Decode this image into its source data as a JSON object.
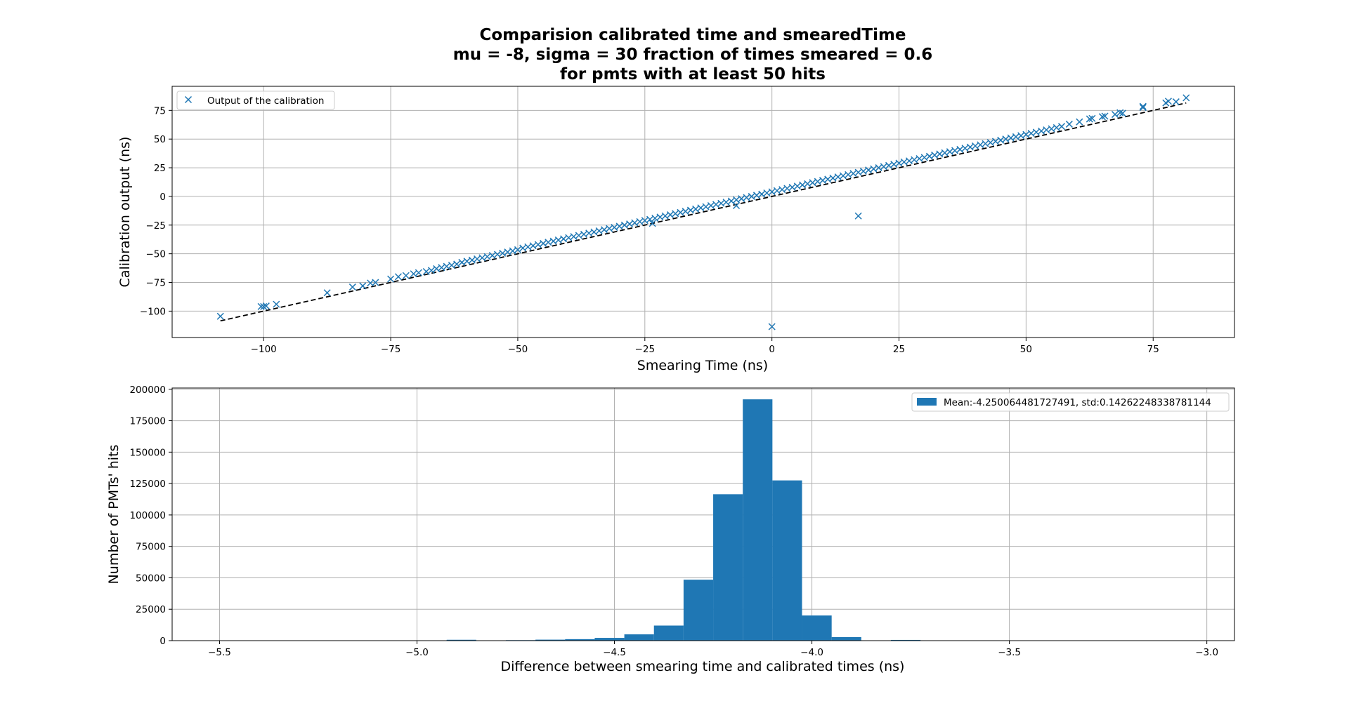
{
  "title_lines": [
    "Comparision calibrated time and smearedTime",
    "mu = -8, sigma = 30 fraction of times smeared = 0.6",
    "for pmts with at least 50 hits"
  ],
  "colors": {
    "series": "#1f77b4",
    "fit_line": "#000000"
  },
  "chart_data": [
    {
      "type": "scatter",
      "xlabel": "Smearing Time (ns)",
      "ylabel": "Calibration output (ns)",
      "xlim": [
        -118,
        91
      ],
      "ylim": [
        -123,
        96
      ],
      "xticks": [
        -100,
        -75,
        -50,
        -25,
        0,
        25,
        50,
        75
      ],
      "yticks": [
        -100,
        -75,
        -50,
        -25,
        0,
        25,
        50,
        75
      ],
      "grid": true,
      "legend_position": "top-left",
      "series": [
        {
          "name": "Output of the calibration",
          "marker": "x",
          "points": [
            [
              -108.5,
              -104.5
            ],
            [
              -100.5,
              -96
            ],
            [
              -100,
              -96
            ],
            [
              -99.5,
              -95.5
            ],
            [
              -97.5,
              -94
            ],
            [
              -87.5,
              -84
            ],
            [
              -82.5,
              -79
            ],
            [
              -80.5,
              -78
            ],
            [
              -79,
              -75.5
            ],
            [
              -78,
              -75
            ],
            [
              -75,
              -72
            ],
            [
              -73.5,
              -70
            ],
            [
              -72,
              -69
            ],
            [
              -70.5,
              -67.5
            ],
            [
              -69.5,
              -66.5
            ],
            [
              -68,
              -65.5
            ],
            [
              -67,
              -64.5
            ],
            [
              -66,
              -63
            ],
            [
              -65,
              -62
            ],
            [
              -64,
              -61
            ],
            [
              -63,
              -60
            ],
            [
              -62,
              -59
            ],
            [
              -61,
              -57.5
            ],
            [
              -60,
              -56.5
            ],
            [
              -59,
              -55.5
            ],
            [
              -58,
              -54.5
            ],
            [
              -57,
              -53.5
            ],
            [
              -56,
              -52.5
            ],
            [
              -55,
              -51.5
            ],
            [
              -54,
              -50.5
            ],
            [
              -53,
              -49.5
            ],
            [
              -52,
              -48.5
            ],
            [
              -51,
              -47.5
            ],
            [
              -50,
              -46.5
            ],
            [
              -49,
              -45
            ],
            [
              -48,
              -44
            ],
            [
              -47,
              -43
            ],
            [
              -46,
              -42
            ],
            [
              -45,
              -41
            ],
            [
              -44,
              -40
            ],
            [
              -43,
              -39
            ],
            [
              -42,
              -38
            ],
            [
              -41,
              -37
            ],
            [
              -40,
              -36
            ],
            [
              -39,
              -35
            ],
            [
              -38,
              -34
            ],
            [
              -37,
              -33
            ],
            [
              -36,
              -32
            ],
            [
              -35,
              -31
            ],
            [
              -34,
              -30
            ],
            [
              -33,
              -29
            ],
            [
              -32,
              -28
            ],
            [
              -31,
              -27
            ],
            [
              -30,
              -26
            ],
            [
              -29,
              -25
            ],
            [
              -28,
              -24
            ],
            [
              -27,
              -23
            ],
            [
              -26,
              -22
            ],
            [
              -25,
              -21
            ],
            [
              -24,
              -20
            ],
            [
              -23.5,
              -23.5
            ],
            [
              -23,
              -19
            ],
            [
              -22,
              -18
            ],
            [
              -21,
              -17
            ],
            [
              -20,
              -16
            ],
            [
              -19,
              -15
            ],
            [
              -18,
              -14
            ],
            [
              -17,
              -13
            ],
            [
              -16,
              -12
            ],
            [
              -15,
              -11
            ],
            [
              -14,
              -10
            ],
            [
              -13,
              -9
            ],
            [
              -12,
              -8
            ],
            [
              -11,
              -7
            ],
            [
              -10,
              -6
            ],
            [
              -9,
              -5
            ],
            [
              -8,
              -4
            ],
            [
              -7,
              -8
            ],
            [
              -7,
              -3
            ],
            [
              -6,
              -2
            ],
            [
              -5,
              -1
            ],
            [
              -4,
              0
            ],
            [
              -3,
              1
            ],
            [
              -2,
              2
            ],
            [
              -1,
              3
            ],
            [
              0,
              -113.5
            ],
            [
              0,
              4
            ],
            [
              1,
              5
            ],
            [
              2,
              6
            ],
            [
              3,
              7
            ],
            [
              4,
              8
            ],
            [
              5,
              9
            ],
            [
              6,
              10
            ],
            [
              7,
              11
            ],
            [
              8,
              12
            ],
            [
              9,
              13
            ],
            [
              10,
              14
            ],
            [
              11,
              15
            ],
            [
              12,
              16
            ],
            [
              13,
              17
            ],
            [
              14,
              18
            ],
            [
              15,
              19
            ],
            [
              16,
              20
            ],
            [
              17,
              -17
            ],
            [
              17,
              21
            ],
            [
              18,
              22
            ],
            [
              19,
              23
            ],
            [
              20,
              24
            ],
            [
              21,
              25
            ],
            [
              22,
              26
            ],
            [
              23,
              27
            ],
            [
              24,
              28
            ],
            [
              25,
              29
            ],
            [
              26,
              30
            ],
            [
              27,
              31
            ],
            [
              28,
              32
            ],
            [
              29,
              33
            ],
            [
              30,
              34
            ],
            [
              31,
              35
            ],
            [
              32,
              36
            ],
            [
              33,
              37
            ],
            [
              34,
              38
            ],
            [
              35,
              39
            ],
            [
              36,
              40
            ],
            [
              37,
              41
            ],
            [
              38,
              42
            ],
            [
              39,
              43
            ],
            [
              40,
              44
            ],
            [
              41,
              45
            ],
            [
              42,
              46
            ],
            [
              43,
              47
            ],
            [
              44,
              48
            ],
            [
              45,
              49
            ],
            [
              46,
              50
            ],
            [
              47,
              51
            ],
            [
              48,
              52
            ],
            [
              49,
              53
            ],
            [
              50,
              54
            ],
            [
              51,
              55
            ],
            [
              52,
              56
            ],
            [
              53,
              57
            ],
            [
              54,
              58
            ],
            [
              55,
              59
            ],
            [
              56,
              60
            ],
            [
              57,
              61
            ],
            [
              58.5,
              63
            ],
            [
              60.5,
              65
            ],
            [
              62.5,
              67.5
            ],
            [
              63,
              68
            ],
            [
              65,
              69.5
            ],
            [
              65.5,
              70
            ],
            [
              67.5,
              71.5
            ],
            [
              68.5,
              73
            ],
            [
              69,
              72.5
            ],
            [
              73,
              77.5
            ],
            [
              73,
              78.5
            ],
            [
              77.5,
              81.5
            ],
            [
              78,
              83
            ],
            [
              79.5,
              82.5
            ],
            [
              81.5,
              86
            ]
          ]
        },
        {
          "name": "",
          "type": "line",
          "style": "dashed",
          "points": [
            [
              -108.5,
              -108.5
            ],
            [
              81.5,
              81.5
            ]
          ]
        }
      ]
    },
    {
      "type": "bar",
      "xlabel": "Difference between smearing time and calibrated times (ns)",
      "ylabel": "Number of PMTs' hits",
      "xlim": [
        -5.62,
        -2.93
      ],
      "ylim": [
        0,
        201000
      ],
      "xticks": [
        -5.5,
        -5.0,
        -4.5,
        -4.0,
        -3.5,
        -3.0
      ],
      "xtick_labels": [
        "−5.5",
        "−5.0",
        "−4.5",
        "−4.0",
        "−3.5",
        "−3.0"
      ],
      "yticks": [
        0,
        25000,
        50000,
        75000,
        100000,
        125000,
        150000,
        175000,
        200000
      ],
      "grid": true,
      "legend_position": "top-right",
      "bin_width": 0.075,
      "series": [
        {
          "name": "Mean:-4.250064481727491, std:0.14262248338781144",
          "bins": [
            [
              -5.15,
              150
            ],
            [
              -5.075,
              100
            ],
            [
              -5.0,
              120
            ],
            [
              -4.925,
              700
            ],
            [
              -4.85,
              150
            ],
            [
              -4.775,
              400
            ],
            [
              -4.7,
              800
            ],
            [
              -4.625,
              1200
            ],
            [
              -4.55,
              2200
            ],
            [
              -4.475,
              5000
            ],
            [
              -4.4,
              12000
            ],
            [
              -4.325,
              48500
            ],
            [
              -4.25,
              116500
            ],
            [
              -4.175,
              192000
            ],
            [
              -4.1,
              127500
            ],
            [
              -4.025,
              20000
            ],
            [
              -3.95,
              2800
            ],
            [
              -3.875,
              200
            ],
            [
              -3.8,
              600
            ],
            [
              -3.725,
              100
            ]
          ]
        }
      ]
    }
  ]
}
